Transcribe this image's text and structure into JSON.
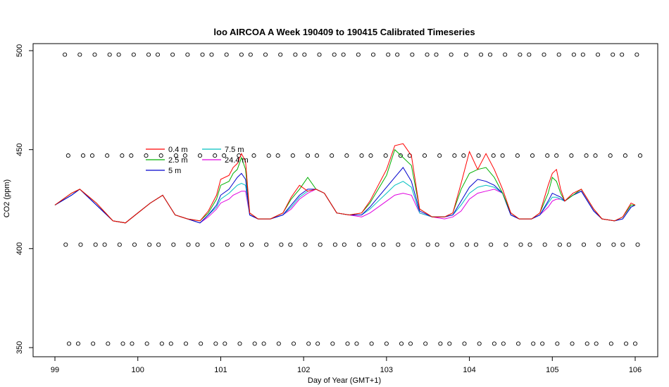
{
  "chart_data": {
    "type": "line",
    "title": "loo AIRCOA A  Week 190409 to 190415  Calibrated Timeseries",
    "xlabel": "Day of Year (GMT+1)",
    "ylabel": "CO2 (ppm)",
    "xlim": [
      99,
      106
    ],
    "ylim": [
      350,
      500
    ],
    "x_ticks": [
      99,
      100,
      101,
      102,
      103,
      104,
      105,
      106
    ],
    "y_ticks": [
      350,
      400,
      450,
      500
    ],
    "grid": false,
    "legend_position": "upper-left-center",
    "colors": {
      "0.4 m": "#ff0000",
      "2.5 m": "#00b000",
      "5 m": "#0000cc",
      "7.5 m": "#00c0c0",
      "24.4 m": "#e000e0"
    },
    "series": [
      {
        "name": "0.4 m",
        "color": "#ff0000",
        "x": [
          99.0,
          99.2,
          99.3,
          99.5,
          99.7,
          99.85,
          100.0,
          100.15,
          100.3,
          100.45,
          100.6,
          100.75,
          100.85,
          100.95,
          101.0,
          101.1,
          101.15,
          101.2,
          101.25,
          101.3,
          101.35,
          101.45,
          101.6,
          101.75,
          101.85,
          101.95,
          102.05,
          102.15,
          102.25,
          102.4,
          102.55,
          102.7,
          102.8,
          102.9,
          103.0,
          103.1,
          103.2,
          103.3,
          103.4,
          103.55,
          103.7,
          103.8,
          103.9,
          104.0,
          104.1,
          104.2,
          104.3,
          104.4,
          104.5,
          104.6,
          104.75,
          104.85,
          104.95,
          105.0,
          105.05,
          105.1,
          105.15,
          105.25,
          105.35,
          105.5,
          105.6,
          105.75,
          105.85,
          105.95,
          106.0
        ],
        "y": [
          422,
          428,
          430,
          423,
          414,
          413,
          418,
          423,
          427,
          417,
          415,
          414,
          419,
          427,
          435,
          437,
          441,
          443,
          448,
          444,
          418,
          415,
          415,
          418,
          426,
          432,
          429,
          430,
          428,
          418,
          417,
          418,
          424,
          432,
          440,
          452,
          453,
          447,
          420,
          416,
          416,
          418,
          433,
          449,
          440,
          448,
          440,
          430,
          418,
          415,
          415,
          418,
          432,
          438,
          440,
          430,
          424,
          428,
          430,
          420,
          415,
          414,
          416,
          423,
          422
        ]
      },
      {
        "name": "2.5 m",
        "color": "#00b000",
        "x": [
          99.0,
          99.2,
          99.3,
          99.5,
          99.7,
          99.85,
          100.0,
          100.15,
          100.3,
          100.45,
          100.6,
          100.75,
          100.85,
          100.95,
          101.0,
          101.1,
          101.15,
          101.2,
          101.25,
          101.3,
          101.35,
          101.45,
          101.6,
          101.75,
          101.85,
          101.95,
          102.05,
          102.15,
          102.25,
          102.4,
          102.55,
          102.7,
          102.8,
          102.9,
          103.0,
          103.1,
          103.2,
          103.3,
          103.4,
          103.55,
          103.7,
          103.8,
          103.9,
          104.0,
          104.1,
          104.2,
          104.3,
          104.4,
          104.5,
          104.6,
          104.75,
          104.85,
          104.95,
          105.0,
          105.05,
          105.1,
          105.15,
          105.25,
          105.35,
          105.5,
          105.6,
          105.75,
          105.85,
          105.95,
          106.0
        ],
        "y": [
          422,
          428,
          430,
          423,
          414,
          413,
          418,
          423,
          427,
          417,
          415,
          414,
          418,
          425,
          432,
          434,
          438,
          440,
          446,
          440,
          418,
          415,
          415,
          418,
          425,
          430,
          436,
          430,
          428,
          418,
          417,
          418,
          423,
          430,
          437,
          450,
          446,
          442,
          420,
          416,
          416,
          418,
          430,
          438,
          440,
          441,
          436,
          428,
          418,
          415,
          415,
          418,
          428,
          436,
          434,
          428,
          424,
          427,
          430,
          420,
          415,
          414,
          416,
          422,
          422
        ]
      },
      {
        "name": "5 m",
        "color": "#0000cc",
        "x": [
          99.0,
          99.2,
          99.3,
          99.5,
          99.7,
          99.85,
          100.0,
          100.15,
          100.3,
          100.45,
          100.6,
          100.75,
          100.85,
          100.95,
          101.0,
          101.1,
          101.15,
          101.2,
          101.25,
          101.3,
          101.35,
          101.45,
          101.6,
          101.75,
          101.85,
          101.95,
          102.05,
          102.15,
          102.25,
          102.4,
          102.55,
          102.7,
          102.8,
          102.9,
          103.0,
          103.1,
          103.2,
          103.3,
          103.4,
          103.55,
          103.7,
          103.8,
          103.9,
          104.0,
          104.1,
          104.2,
          104.3,
          104.4,
          104.5,
          104.6,
          104.75,
          104.85,
          104.95,
          105.0,
          105.05,
          105.1,
          105.15,
          105.25,
          105.35,
          105.5,
          105.6,
          105.75,
          105.85,
          105.95,
          106.0
        ],
        "y": [
          422,
          427,
          430,
          422,
          414,
          413,
          418,
          423,
          427,
          417,
          415,
          413,
          417,
          422,
          427,
          430,
          433,
          436,
          438,
          435,
          417,
          415,
          415,
          417,
          422,
          427,
          430,
          430,
          428,
          418,
          417,
          417,
          421,
          426,
          431,
          436,
          441,
          434,
          419,
          416,
          416,
          417,
          424,
          431,
          435,
          434,
          432,
          428,
          417,
          415,
          415,
          417,
          424,
          428,
          427,
          426,
          424,
          427,
          429,
          419,
          415,
          414,
          415,
          421,
          422
        ]
      },
      {
        "name": "7.5 m",
        "color": "#00c0c0",
        "x": [
          99.0,
          99.2,
          99.3,
          99.5,
          99.7,
          99.85,
          100.0,
          100.15,
          100.3,
          100.45,
          100.6,
          100.75,
          100.85,
          100.95,
          101.0,
          101.1,
          101.15,
          101.2,
          101.25,
          101.3,
          101.35,
          101.45,
          101.6,
          101.75,
          101.85,
          101.95,
          102.05,
          102.15,
          102.25,
          102.4,
          102.55,
          102.7,
          102.8,
          102.9,
          103.0,
          103.1,
          103.2,
          103.3,
          103.4,
          103.55,
          103.7,
          103.8,
          103.9,
          104.0,
          104.1,
          104.2,
          104.3,
          104.4,
          104.5,
          104.6,
          104.75,
          104.85,
          104.95,
          105.0,
          105.05,
          105.1,
          105.15,
          105.25,
          105.35,
          105.5,
          105.6,
          105.75,
          105.85,
          105.95,
          106.0
        ],
        "y": [
          422,
          427,
          430,
          422,
          414,
          413,
          418,
          423,
          427,
          417,
          415,
          413,
          417,
          421,
          425,
          428,
          430,
          432,
          433,
          432,
          417,
          415,
          415,
          417,
          421,
          426,
          429,
          430,
          428,
          418,
          417,
          417,
          420,
          424,
          428,
          432,
          434,
          431,
          418,
          416,
          416,
          417,
          422,
          428,
          431,
          432,
          431,
          428,
          417,
          415,
          415,
          417,
          423,
          426,
          426,
          425,
          424,
          427,
          429,
          419,
          415,
          414,
          415,
          421,
          422
        ]
      },
      {
        "name": "24.4 m",
        "color": "#e000e0",
        "x": [
          99.0,
          99.2,
          99.3,
          99.5,
          99.7,
          99.85,
          100.0,
          100.15,
          100.3,
          100.45,
          100.6,
          100.75,
          100.85,
          100.95,
          101.0,
          101.1,
          101.15,
          101.2,
          101.25,
          101.3,
          101.35,
          101.45,
          101.6,
          101.75,
          101.85,
          101.95,
          102.05,
          102.15,
          102.25,
          102.4,
          102.55,
          102.7,
          102.8,
          102.9,
          103.0,
          103.1,
          103.2,
          103.3,
          103.4,
          103.55,
          103.7,
          103.8,
          103.9,
          104.0,
          104.1,
          104.2,
          104.3,
          104.4,
          104.5,
          104.6,
          104.75,
          104.85,
          104.95,
          105.0,
          105.05,
          105.1,
          105.15,
          105.25,
          105.35,
          105.5,
          105.6,
          105.75,
          105.85,
          105.95,
          106.0
        ],
        "y": [
          422,
          427,
          430,
          422,
          414,
          413,
          418,
          423,
          427,
          417,
          415,
          413,
          416,
          420,
          423,
          425,
          427,
          428,
          429,
          429,
          417,
          415,
          415,
          417,
          420,
          425,
          428,
          430,
          428,
          418,
          417,
          416,
          418,
          421,
          424,
          427,
          428,
          427,
          418,
          416,
          415,
          416,
          419,
          425,
          428,
          429,
          430,
          428,
          417,
          415,
          415,
          417,
          421,
          424,
          425,
          425,
          424,
          427,
          429,
          419,
          415,
          414,
          415,
          421,
          422
        ]
      }
    ],
    "marker_rows": [
      {
        "name": "upper",
        "y": 498
      },
      {
        "name": "mid-high",
        "y": 447
      },
      {
        "name": "mid-low",
        "y": 402
      },
      {
        "name": "lower",
        "y": 352
      }
    ],
    "legend": [
      [
        "0.4 m",
        "7.5 m"
      ],
      [
        "2.5 m",
        "24.4 m"
      ],
      [
        "5 m"
      ]
    ]
  }
}
